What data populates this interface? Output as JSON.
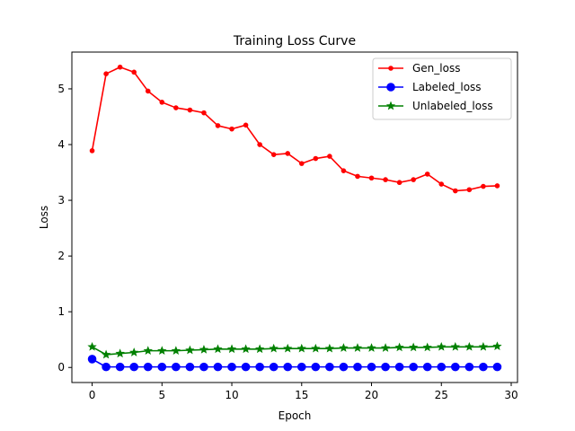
{
  "chart_data": {
    "type": "line",
    "title": "Training Loss Curve",
    "xlabel": "Epoch",
    "ylabel": "Loss",
    "xlim": [
      -1.45,
      30.45
    ],
    "ylim": [
      -0.27,
      5.66
    ],
    "xticks": [
      0,
      5,
      10,
      15,
      20,
      25,
      30
    ],
    "yticks": [
      0,
      1,
      2,
      3,
      4,
      5
    ],
    "grid": false,
    "legend": "top-right",
    "x": [
      0,
      1,
      2,
      3,
      4,
      5,
      6,
      7,
      8,
      9,
      10,
      11,
      12,
      13,
      14,
      15,
      16,
      17,
      18,
      19,
      20,
      21,
      22,
      23,
      24,
      25,
      26,
      27,
      28,
      29
    ],
    "series": [
      {
        "name": "Gen_loss",
        "color": "#ff0000",
        "marker": "dot",
        "values": [
          3.89,
          5.27,
          5.39,
          5.3,
          4.96,
          4.76,
          4.66,
          4.62,
          4.57,
          4.34,
          4.28,
          4.35,
          4.0,
          3.82,
          3.84,
          3.66,
          3.75,
          3.79,
          3.53,
          3.43,
          3.4,
          3.37,
          3.32,
          3.37,
          3.47,
          3.29,
          3.17,
          3.19,
          3.25,
          3.26
        ]
      },
      {
        "name": "Labeled_loss",
        "color": "#0000ff",
        "marker": "circle",
        "values": [
          0.15,
          0.01,
          0.01,
          0.01,
          0.01,
          0.01,
          0.01,
          0.01,
          0.01,
          0.01,
          0.01,
          0.01,
          0.01,
          0.01,
          0.01,
          0.01,
          0.01,
          0.01,
          0.01,
          0.01,
          0.01,
          0.01,
          0.01,
          0.01,
          0.01,
          0.01,
          0.01,
          0.01,
          0.01,
          0.01
        ]
      },
      {
        "name": "Unlabeled_loss",
        "color": "#008000",
        "marker": "star",
        "values": [
          0.37,
          0.23,
          0.25,
          0.27,
          0.3,
          0.3,
          0.3,
          0.31,
          0.32,
          0.33,
          0.33,
          0.33,
          0.33,
          0.34,
          0.34,
          0.34,
          0.34,
          0.34,
          0.35,
          0.35,
          0.35,
          0.35,
          0.36,
          0.36,
          0.36,
          0.37,
          0.37,
          0.37,
          0.37,
          0.38
        ]
      }
    ]
  }
}
